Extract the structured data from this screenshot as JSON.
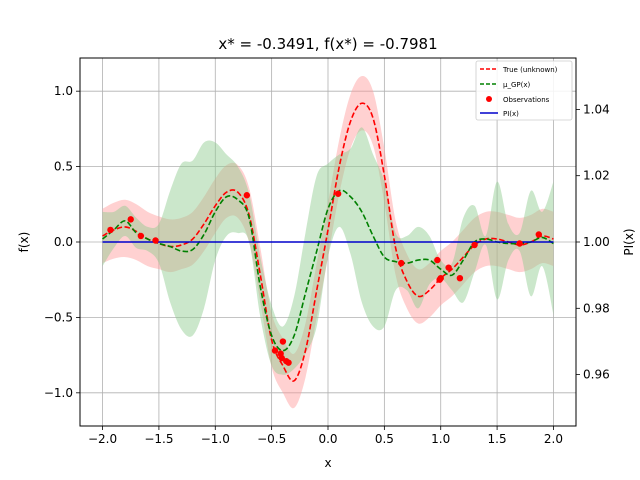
{
  "chart_data": {
    "type": "line",
    "title": "x* = -0.3491, f(x*) = -0.7981",
    "xlabel": "x",
    "ylabel": "f(x)",
    "ylabel_right": "PI(x)",
    "xlim": [
      -2.2,
      2.2
    ],
    "ylim": [
      -1.22,
      1.22
    ],
    "ylim_right": [
      0.9445,
      1.0555
    ],
    "xticks": [
      -2.0,
      -1.5,
      -1.0,
      -0.5,
      0.0,
      0.5,
      1.0,
      1.5,
      2.0
    ],
    "xtick_labels": [
      "−2.0",
      "−1.5",
      "−1.0",
      "−0.5",
      "0.0",
      "0.5",
      "1.0",
      "1.5",
      "2.0"
    ],
    "yticks": [
      -1.0,
      -0.5,
      0.0,
      0.5,
      1.0
    ],
    "ytick_labels": [
      "−1.0",
      "−0.5",
      "0.0",
      "0.5",
      "1.0"
    ],
    "yticks_right": [
      0.96,
      0.98,
      1.0,
      1.02,
      1.04
    ],
    "ytick_labels_right": [
      "0.96",
      "0.98",
      "1.00",
      "1.02",
      "1.04"
    ],
    "grid": true,
    "legend_position": "top-right",
    "colors": {
      "true": "#ff0000",
      "gp": "#008000",
      "obs": "#ff0000",
      "pi": "#0000cc",
      "true_band": "#ff9999",
      "gp_band": "#8cc98c"
    },
    "series": [
      {
        "name": "True (unknown)",
        "style": "dashed",
        "x": [
          -2.0,
          -1.9,
          -1.8,
          -1.7,
          -1.6,
          -1.5,
          -1.4,
          -1.3,
          -1.2,
          -1.1,
          -1.0,
          -0.9,
          -0.8,
          -0.7,
          -0.6,
          -0.5,
          -0.4,
          -0.3,
          -0.2,
          -0.1,
          0.0,
          0.1,
          0.2,
          0.3,
          0.4,
          0.5,
          0.6,
          0.7,
          0.8,
          0.9,
          1.0,
          1.1,
          1.2,
          1.3,
          1.4,
          1.5,
          1.6,
          1.7,
          1.8,
          1.9,
          2.0
        ],
        "y": [
          0.04,
          0.08,
          0.1,
          0.07,
          0.02,
          -0.01,
          -0.03,
          -0.02,
          0.02,
          0.12,
          0.24,
          0.33,
          0.33,
          0.18,
          -0.22,
          -0.65,
          -0.82,
          -0.92,
          -0.72,
          -0.32,
          0.08,
          0.5,
          0.8,
          0.92,
          0.82,
          0.44,
          -0.04,
          -0.26,
          -0.36,
          -0.32,
          -0.24,
          -0.18,
          -0.1,
          -0.02,
          0.02,
          0.02,
          0.0,
          -0.02,
          0.0,
          0.04,
          0.02
        ],
        "band_lower": [
          -0.14,
          -0.11,
          -0.1,
          -0.12,
          -0.16,
          -0.18,
          -0.2,
          -0.18,
          -0.15,
          -0.06,
          0.06,
          0.16,
          0.16,
          0.0,
          -0.4,
          -0.83,
          -1.0,
          -1.1,
          -0.9,
          -0.5,
          -0.1,
          0.32,
          0.62,
          0.74,
          0.64,
          0.26,
          -0.22,
          -0.44,
          -0.54,
          -0.5,
          -0.42,
          -0.36,
          -0.28,
          -0.2,
          -0.16,
          -0.16,
          -0.18,
          -0.2,
          -0.18,
          -0.14,
          -0.16
        ],
        "band_upper": [
          0.22,
          0.26,
          0.28,
          0.25,
          0.2,
          0.17,
          0.15,
          0.16,
          0.2,
          0.3,
          0.42,
          0.51,
          0.51,
          0.36,
          -0.04,
          -0.47,
          -0.64,
          -0.74,
          -0.54,
          -0.14,
          0.26,
          0.68,
          0.98,
          1.1,
          1.0,
          0.62,
          0.14,
          -0.08,
          -0.18,
          -0.14,
          -0.06,
          0.0,
          0.08,
          0.16,
          0.2,
          0.2,
          0.18,
          0.16,
          0.18,
          0.22,
          0.2
        ]
      },
      {
        "name": "μ_GP(x)",
        "style": "dashed",
        "x": [
          -2.0,
          -1.9,
          -1.8,
          -1.7,
          -1.6,
          -1.5,
          -1.4,
          -1.3,
          -1.2,
          -1.1,
          -1.0,
          -0.9,
          -0.8,
          -0.7,
          -0.6,
          -0.5,
          -0.4,
          -0.3,
          -0.2,
          -0.1,
          0.0,
          0.1,
          0.2,
          0.3,
          0.4,
          0.5,
          0.6,
          0.7,
          0.8,
          0.9,
          1.0,
          1.1,
          1.2,
          1.3,
          1.4,
          1.5,
          1.6,
          1.7,
          1.8,
          1.9,
          2.0
        ],
        "y": [
          0.02,
          0.08,
          0.14,
          0.06,
          0.02,
          -0.01,
          -0.03,
          -0.06,
          -0.05,
          0.05,
          0.2,
          0.3,
          0.28,
          0.16,
          -0.3,
          -0.62,
          -0.72,
          -0.62,
          -0.34,
          -0.06,
          0.22,
          0.34,
          0.3,
          0.2,
          0.04,
          -0.1,
          -0.13,
          -0.14,
          -0.12,
          -0.12,
          -0.18,
          -0.22,
          -0.12,
          0.0,
          0.02,
          0.0,
          -0.01,
          -0.01,
          0.0,
          0.03,
          -0.01
        ],
        "band_lower": [
          -0.16,
          -0.04,
          0.04,
          -0.04,
          -0.06,
          -0.14,
          -0.4,
          -0.58,
          -0.62,
          -0.44,
          -0.12,
          0.04,
          0.06,
          0.0,
          -0.5,
          -0.82,
          -0.88,
          -0.84,
          -0.74,
          -0.56,
          -0.1,
          0.1,
          -0.08,
          -0.4,
          -0.56,
          -0.56,
          -0.32,
          -0.32,
          -0.44,
          -0.28,
          -0.24,
          -0.32,
          -0.4,
          -0.2,
          -0.02,
          -0.38,
          -0.12,
          -0.06,
          -0.36,
          -0.16,
          -0.48
        ],
        "band_upper": [
          0.2,
          0.2,
          0.24,
          0.16,
          0.1,
          0.12,
          0.34,
          0.52,
          0.54,
          0.66,
          0.66,
          0.58,
          0.5,
          0.32,
          -0.1,
          -0.42,
          -0.56,
          -0.36,
          0.06,
          0.44,
          0.52,
          0.58,
          0.62,
          0.76,
          0.58,
          0.4,
          0.06,
          0.04,
          0.1,
          0.04,
          -0.12,
          -0.14,
          0.16,
          0.24,
          0.04,
          0.4,
          0.12,
          0.06,
          0.34,
          0.2,
          0.4
        ]
      },
      {
        "name": "Observations",
        "style": "points",
        "x": [
          -1.93,
          -1.75,
          -1.66,
          -1.53,
          -0.72,
          -0.47,
          -0.42,
          -0.41,
          -0.4,
          -0.37,
          -0.35,
          0.09,
          0.65,
          0.97,
          0.99,
          1.0,
          1.07,
          1.17,
          1.3,
          1.7,
          1.87
        ],
        "y": [
          0.08,
          0.15,
          0.04,
          0.01,
          0.31,
          -0.72,
          -0.74,
          -0.77,
          -0.66,
          -0.79,
          -0.8,
          0.32,
          -0.14,
          -0.12,
          -0.25,
          -0.24,
          -0.17,
          -0.24,
          -0.02,
          -0.01,
          0.05
        ]
      },
      {
        "name": "PI(x)",
        "style": "solid",
        "axis": "right",
        "x": [
          -2.0,
          2.0
        ],
        "y": [
          1.0,
          1.0
        ]
      }
    ]
  }
}
